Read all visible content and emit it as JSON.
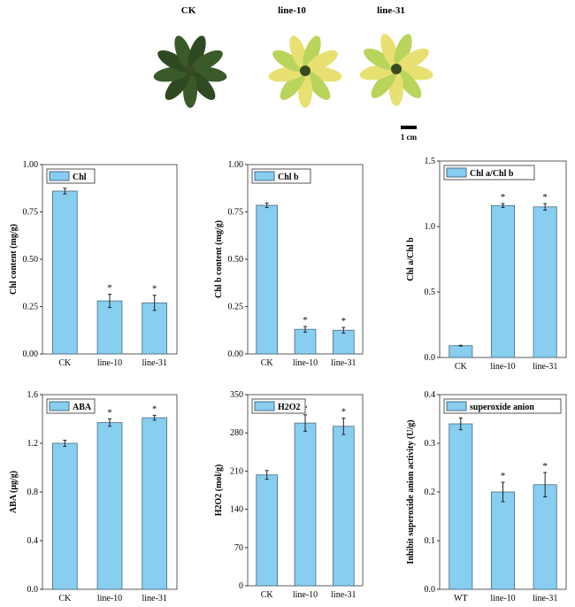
{
  "photos": {
    "labels": [
      "CK",
      "line-10",
      "line-31"
    ],
    "scale_bar_label": "1 cm",
    "colors": {
      "ck_leaf": "#2f4a22",
      "mutant_leaf": "#b9d45a",
      "mutant_yellow": "#e8e070"
    }
  },
  "colors": {
    "bar": "#87cef0",
    "bar_edge": "#4a6a80"
  },
  "chart_data": [
    {
      "type": "bar",
      "legend": "Chl",
      "ylabel": "Chl content (mg/g)",
      "categories": [
        "CK",
        "line-10",
        "line-31"
      ],
      "values": [
        0.86,
        0.28,
        0.27
      ],
      "errors": [
        0.015,
        0.035,
        0.04
      ],
      "significance": [
        "",
        "*",
        "*"
      ],
      "ylim": [
        0,
        1.0
      ],
      "yticks": [
        "0.00",
        "0.25",
        "0.50",
        "0.75",
        "1.00"
      ],
      "legend_position": "top-left",
      "grid": false
    },
    {
      "type": "bar",
      "legend": "Chl b",
      "ylabel": "Chl b content (mg/g)",
      "categories": [
        "CK",
        "line-10",
        "line-31"
      ],
      "values": [
        0.785,
        0.13,
        0.125
      ],
      "errors": [
        0.012,
        0.015,
        0.015
      ],
      "significance": [
        "",
        "*",
        "*"
      ],
      "ylim": [
        0,
        1.0
      ],
      "yticks": [
        "0.00",
        "0.25",
        "0.50",
        "0.75",
        "1.00"
      ],
      "legend_position": "top-left",
      "grid": false
    },
    {
      "type": "bar",
      "legend": "Chl a/Chl b",
      "ylabel": "Chl a/Chl b",
      "categories": [
        "CK",
        "line-10",
        "line-31"
      ],
      "values": [
        0.09,
        1.16,
        1.15
      ],
      "errors": [
        0.003,
        0.015,
        0.025
      ],
      "significance": [
        "",
        "*",
        "*"
      ],
      "ylim": [
        0,
        1.5
      ],
      "yticks": [
        "0.0",
        "0.5",
        "1.0",
        "1.5"
      ],
      "legend_position": "top-left",
      "grid": false
    },
    {
      "type": "bar",
      "legend": "ABA",
      "ylabel": "ABA (μg/g)",
      "categories": [
        "CK",
        "line-10",
        "line-31"
      ],
      "values": [
        1.2,
        1.37,
        1.41
      ],
      "errors": [
        0.025,
        0.03,
        0.02
      ],
      "significance": [
        "",
        "*",
        "*"
      ],
      "ylim": [
        0,
        1.6
      ],
      "yticks": [
        "0.0",
        "0.4",
        "0.8",
        "1.2",
        "1.6"
      ],
      "legend_position": "top-left",
      "grid": false
    },
    {
      "type": "bar",
      "legend": "H2O2",
      "ylabel": "H2O2 (mol/g)",
      "categories": [
        "CK",
        "line-10",
        "line-31"
      ],
      "values": [
        203,
        298,
        292
      ],
      "errors": [
        8,
        15,
        15
      ],
      "significance": [
        "",
        "*",
        "*"
      ],
      "ylim": [
        0,
        350
      ],
      "yticks": [
        "0",
        "70",
        "140",
        "210",
        "280",
        "350"
      ],
      "legend_position": "top-left",
      "grid": false
    },
    {
      "type": "bar",
      "legend": "superoxide anion",
      "ylabel": "Inhibit superoxide anion activity (U/g)",
      "categories": [
        "WT",
        "line-10",
        "line-31"
      ],
      "values": [
        0.34,
        0.2,
        0.215
      ],
      "errors": [
        0.012,
        0.02,
        0.025
      ],
      "significance": [
        "",
        "*",
        "*"
      ],
      "ylim": [
        0,
        0.4
      ],
      "yticks": [
        "0.0",
        "0.1",
        "0.2",
        "0.3",
        "0.4"
      ],
      "legend_position": "top-left",
      "grid": false
    }
  ]
}
